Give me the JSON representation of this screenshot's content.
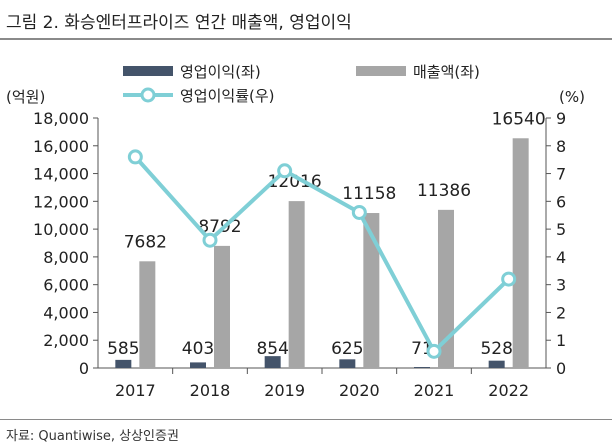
{
  "title": "그림 2. 화승엔터프라이즈 연간 매출액, 영업이익",
  "source": "자료: Quantiwise,  상상인증권",
  "colors": {
    "op_profit": "#44546a",
    "revenue": "#a6a6a6",
    "margin_line": "#7fcfd6"
  },
  "chart_data": {
    "type": "bar",
    "categories": [
      "2017",
      "2018",
      "2019",
      "2020",
      "2021",
      "2022"
    ],
    "left_axis": {
      "unit_label": "(억원)",
      "ylim": [
        0,
        18000
      ],
      "ticks": [
        "0",
        "2,000",
        "4,000",
        "6,000",
        "8,000",
        "10,000",
        "12,000",
        "14,000",
        "16,000",
        "18,000"
      ]
    },
    "right_axis": {
      "unit_label": "(%)",
      "ylim": [
        0,
        9
      ],
      "ticks": [
        "0",
        "1",
        "2",
        "3",
        "4",
        "5",
        "6",
        "7",
        "8",
        "9"
      ]
    },
    "series": [
      {
        "name": "영업이익(좌)",
        "type": "bar",
        "axis": "left",
        "values": [
          585,
          403,
          854,
          625,
          71,
          528
        ],
        "labels": [
          "585",
          "403",
          "854",
          "625",
          "71",
          "528"
        ]
      },
      {
        "name": "매출액(좌)",
        "type": "bar",
        "axis": "left",
        "values": [
          7682,
          8792,
          12016,
          11158,
          11386,
          16540
        ],
        "labels": [
          "7682",
          "8792",
          "12016",
          "11158",
          "11386",
          "16540"
        ]
      },
      {
        "name": "영업이익률(우)",
        "type": "line",
        "axis": "right",
        "values": [
          7.6,
          4.6,
          7.1,
          5.6,
          0.6,
          3.2
        ]
      }
    ],
    "legend": [
      "영업이익(좌)",
      "매출액(좌)",
      "영업이익률(우)"
    ],
    "legend_position": "top",
    "grid": false
  }
}
